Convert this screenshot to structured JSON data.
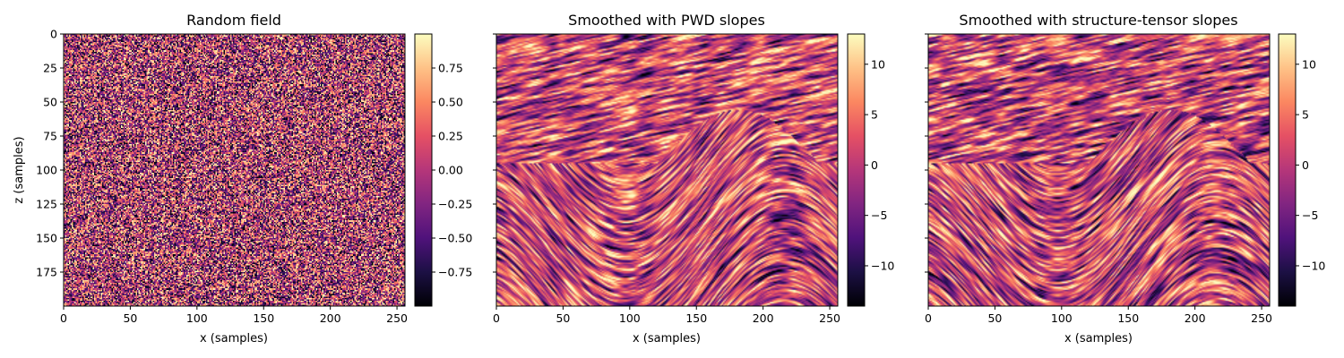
{
  "chart_data": [
    {
      "type": "heatmap",
      "title": "Random field",
      "xlabel": "x (samples)",
      "ylabel": "z (samples)",
      "xlim": [
        0,
        256
      ],
      "ylim": [
        200,
        0
      ],
      "x_ticks": [
        0,
        50,
        100,
        150,
        200,
        250
      ],
      "y_ticks": [
        0,
        25,
        50,
        75,
        100,
        125,
        150,
        175
      ],
      "y_ticks_labeled": true,
      "colormap": "magma",
      "colorbar": {
        "range": [
          -1,
          1
        ],
        "ticks": [
          -0.75,
          -0.5,
          -0.25,
          0.0,
          0.25,
          0.5,
          0.75
        ],
        "tick_labels": [
          "−0.75",
          "−0.50",
          "−0.25",
          "0.00",
          "0.25",
          "0.50",
          "0.75"
        ]
      },
      "pattern": "noise"
    },
    {
      "type": "heatmap",
      "title": "Smoothed with PWD slopes",
      "xlabel": "x (samples)",
      "ylabel": "",
      "xlim": [
        0,
        256
      ],
      "ylim": [
        200,
        0
      ],
      "x_ticks": [
        0,
        50,
        100,
        150,
        200,
        250
      ],
      "y_ticks": [
        0,
        25,
        50,
        75,
        100,
        125,
        150,
        175
      ],
      "y_ticks_labeled": false,
      "colormap": "magma",
      "colorbar": {
        "range": [
          -14,
          13
        ],
        "ticks": [
          -10,
          -5,
          0,
          5,
          10
        ],
        "tick_labels": [
          "−10",
          "−5",
          "0",
          "5",
          "10"
        ]
      },
      "pattern": "streaks"
    },
    {
      "type": "heatmap",
      "title": "Smoothed with structure-tensor slopes",
      "xlabel": "x (samples)",
      "ylabel": "",
      "xlim": [
        0,
        256
      ],
      "ylim": [
        200,
        0
      ],
      "x_ticks": [
        0,
        50,
        100,
        150,
        200,
        250
      ],
      "y_ticks": [
        0,
        25,
        50,
        75,
        100,
        125,
        150,
        175
      ],
      "y_ticks_labeled": false,
      "colormap": "magma",
      "colorbar": {
        "range": [
          -14,
          13
        ],
        "ticks": [
          -10,
          -5,
          0,
          5,
          10
        ],
        "tick_labels": [
          "−10",
          "−5",
          "0",
          "5",
          "10"
        ]
      },
      "pattern": "streaks"
    }
  ]
}
